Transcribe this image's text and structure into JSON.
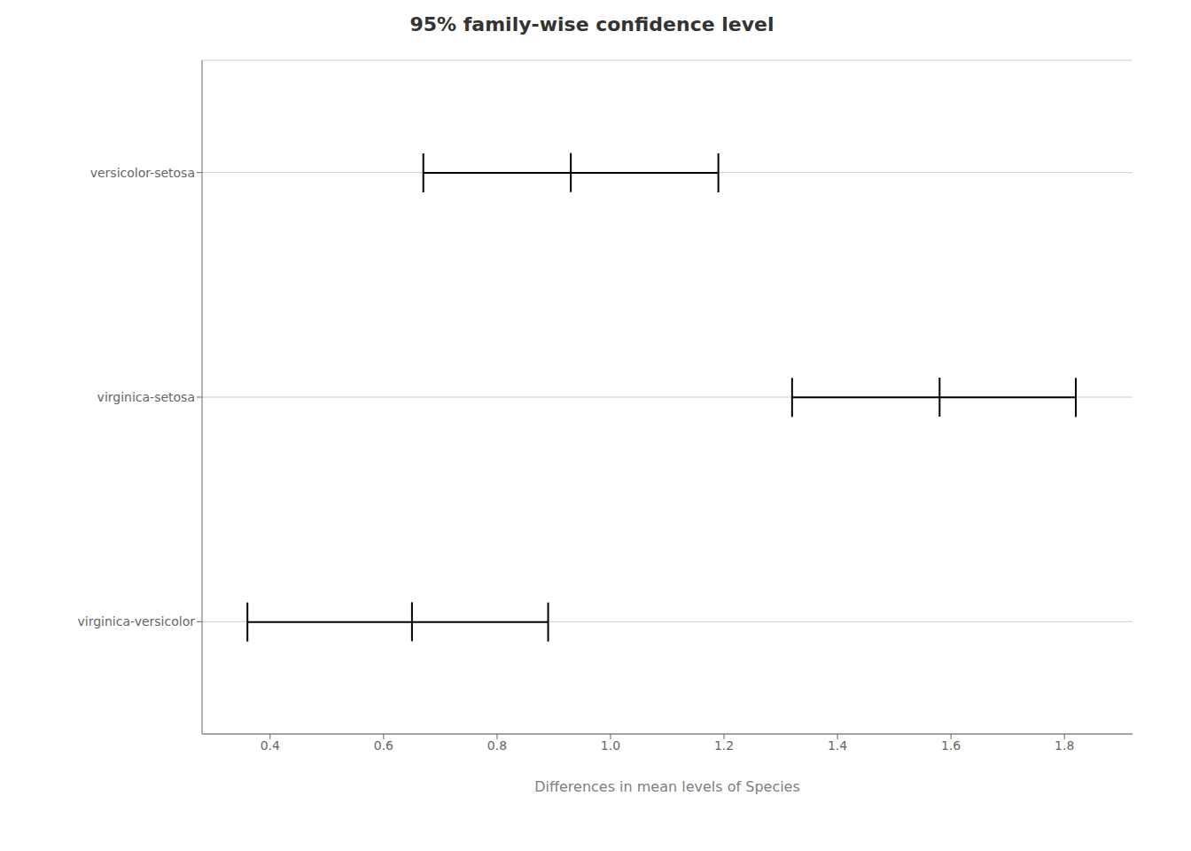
{
  "chart_data": {
    "type": "interval",
    "title": "95% family-wise confidence level",
    "xlabel": "Differences in mean levels of Species",
    "categories": [
      "versicolor-setosa",
      "virginica-setosa",
      "virginica-versicolor"
    ],
    "values": [
      0.93,
      1.58,
      0.65
    ],
    "lower": [
      0.67,
      1.32,
      0.36
    ],
    "upper": [
      1.19,
      1.82,
      0.89
    ],
    "xlim": [
      0.28,
      1.92
    ],
    "xticks": [
      0.4,
      0.6,
      0.8,
      {
        "value": 1.0,
        "label": "1.0"
      },
      1.2,
      1.4,
      1.6,
      1.8
    ],
    "color": "#000000",
    "grid": true
  }
}
